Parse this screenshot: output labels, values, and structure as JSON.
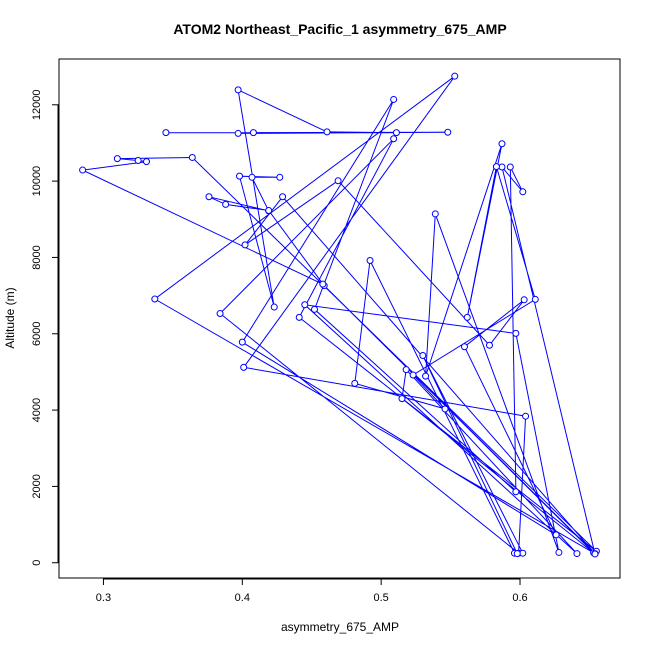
{
  "chart_data": {
    "type": "line",
    "title": "ATOM2 Northeast_Pacific_1 asymmetry_675_AMP",
    "xlabel": "asymmetry_675_AMP",
    "ylabel": "Altitude (m)",
    "xlim": [
      0.268,
      0.672
    ],
    "ylim": [
      -400,
      13200
    ],
    "xticks": [
      0.3,
      0.4,
      0.5,
      0.6
    ],
    "xtick_labels": [
      "0.3",
      "0.4",
      "0.5",
      "0.6"
    ],
    "yticks": [
      0,
      2000,
      4000,
      6000,
      8000,
      10000,
      12000
    ],
    "ytick_labels": [
      "0",
      "2000",
      "4000",
      "6000",
      "8000",
      "10000",
      "12000"
    ],
    "color": "#0000ff",
    "marker": "open-circle",
    "points": [
      {
        "x": 0.345,
        "y": 11270
      },
      {
        "x": 0.548,
        "y": 11280
      },
      {
        "x": 0.397,
        "y": 11250
      },
      {
        "x": 0.408,
        "y": 11270
      },
      {
        "x": 0.511,
        "y": 11270
      },
      {
        "x": 0.461,
        "y": 11290
      },
      {
        "x": 0.397,
        "y": 12390
      },
      {
        "x": 0.423,
        "y": 6700
      },
      {
        "x": 0.398,
        "y": 10130
      },
      {
        "x": 0.427,
        "y": 10100
      },
      {
        "x": 0.407,
        "y": 10100
      },
      {
        "x": 0.419,
        "y": 9220
      },
      {
        "x": 0.376,
        "y": 9590
      },
      {
        "x": 0.388,
        "y": 9390
      },
      {
        "x": 0.419,
        "y": 9230
      },
      {
        "x": 0.459,
        "y": 7260
      },
      {
        "x": 0.653,
        "y": 260
      },
      {
        "x": 0.337,
        "y": 6910
      },
      {
        "x": 0.553,
        "y": 12750
      },
      {
        "x": 0.401,
        "y": 5120
      },
      {
        "x": 0.604,
        "y": 3840
      },
      {
        "x": 0.599,
        "y": 250
      },
      {
        "x": 0.384,
        "y": 6530
      },
      {
        "x": 0.509,
        "y": 11110
      },
      {
        "x": 0.441,
        "y": 6430
      },
      {
        "x": 0.655,
        "y": 300
      },
      {
        "x": 0.364,
        "y": 10620
      },
      {
        "x": 0.31,
        "y": 10590
      },
      {
        "x": 0.325,
        "y": 10540
      },
      {
        "x": 0.331,
        "y": 10510
      },
      {
        "x": 0.285,
        "y": 10290
      },
      {
        "x": 0.458,
        "y": 7300
      },
      {
        "x": 0.654,
        "y": 240
      },
      {
        "x": 0.429,
        "y": 9590
      },
      {
        "x": 0.402,
        "y": 8330
      },
      {
        "x": 0.469,
        "y": 10010
      },
      {
        "x": 0.578,
        "y": 5700
      },
      {
        "x": 0.603,
        "y": 6890
      },
      {
        "x": 0.56,
        "y": 5660
      },
      {
        "x": 0.626,
        "y": 730
      },
      {
        "x": 0.4,
        "y": 5780
      },
      {
        "x": 0.509,
        "y": 12140
      },
      {
        "x": 0.452,
        "y": 6640
      },
      {
        "x": 0.597,
        "y": 1860
      },
      {
        "x": 0.593,
        "y": 10370
      },
      {
        "x": 0.602,
        "y": 9720
      },
      {
        "x": 0.587,
        "y": 10370
      },
      {
        "x": 0.654,
        "y": 230
      },
      {
        "x": 0.515,
        "y": 4300
      },
      {
        "x": 0.518,
        "y": 5060
      },
      {
        "x": 0.641,
        "y": 240
      },
      {
        "x": 0.445,
        "y": 6760
      },
      {
        "x": 0.597,
        "y": 6010
      },
      {
        "x": 0.628,
        "y": 270
      },
      {
        "x": 0.539,
        "y": 9140
      },
      {
        "x": 0.532,
        "y": 4890
      },
      {
        "x": 0.587,
        "y": 10980
      },
      {
        "x": 0.562,
        "y": 6430
      },
      {
        "x": 0.583,
        "y": 10380
      },
      {
        "x": 0.611,
        "y": 6900
      },
      {
        "x": 0.523,
        "y": 4920
      },
      {
        "x": 0.546,
        "y": 4030
      },
      {
        "x": 0.481,
        "y": 4700
      },
      {
        "x": 0.492,
        "y": 7920
      },
      {
        "x": 0.596,
        "y": 250
      },
      {
        "x": 0.602,
        "y": 250
      },
      {
        "x": 0.53,
        "y": 5430
      },
      {
        "x": 0.598,
        "y": 240
      }
    ]
  }
}
